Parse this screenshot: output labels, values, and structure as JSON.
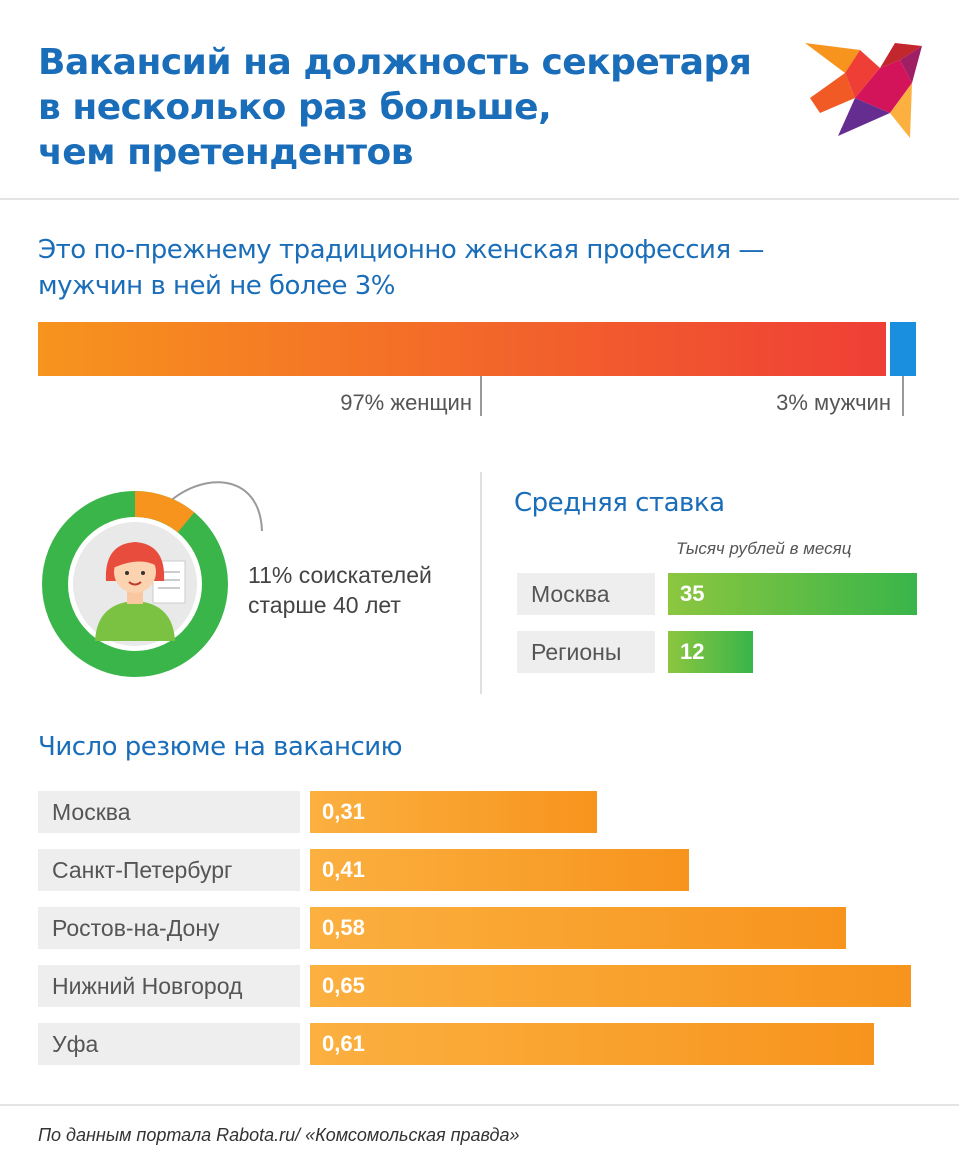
{
  "header": {
    "title_lines": [
      "Вакансий на должность секретаря",
      "в несколько раз больше,",
      "чем претендентов"
    ]
  },
  "gender": {
    "heading_lines": [
      "Это по-прежнему традиционно женская профессия —",
      "мужчин в ней не более 3%"
    ],
    "women_label": "97% женщин",
    "men_label": "3% мужчин",
    "women_pct": 97,
    "men_pct": 3
  },
  "age": {
    "label_lines": [
      "11% соискателей",
      "старше 40 лет"
    ],
    "pct": 11
  },
  "colors": {
    "blue": "#1a6db8",
    "orange": "#f7941d",
    "red": "#ef3e36",
    "green": "#39b54a",
    "men_blue": "#1a8fe0"
  },
  "chart_data": [
    {
      "type": "bar",
      "title": "Средняя ставка",
      "subtitle": "Тысяч рублей в месяц",
      "categories": [
        "Москва",
        "Регионы"
      ],
      "values": [
        35,
        12
      ],
      "value_labels": [
        "35",
        "12"
      ],
      "xlim": [
        0,
        35
      ]
    },
    {
      "type": "bar",
      "title": "Число резюме на вакансию",
      "categories": [
        "Москва",
        "Санкт-Петербург",
        "Ростов-на-Дону",
        "Нижний Новгород",
        "Уфа"
      ],
      "values": [
        0.31,
        0.41,
        0.58,
        0.65,
        0.61
      ],
      "value_labels": [
        "0,31",
        "0,41",
        "0,58",
        "0,65",
        "0,61"
      ],
      "xlim": [
        0,
        0.65
      ]
    }
  ],
  "footer": {
    "source": "По данным портала Rabota.ru/ «Комсомольская правда»"
  },
  "icons": [
    "kp-bird-logo-icon",
    "woman-avatar-icon"
  ]
}
